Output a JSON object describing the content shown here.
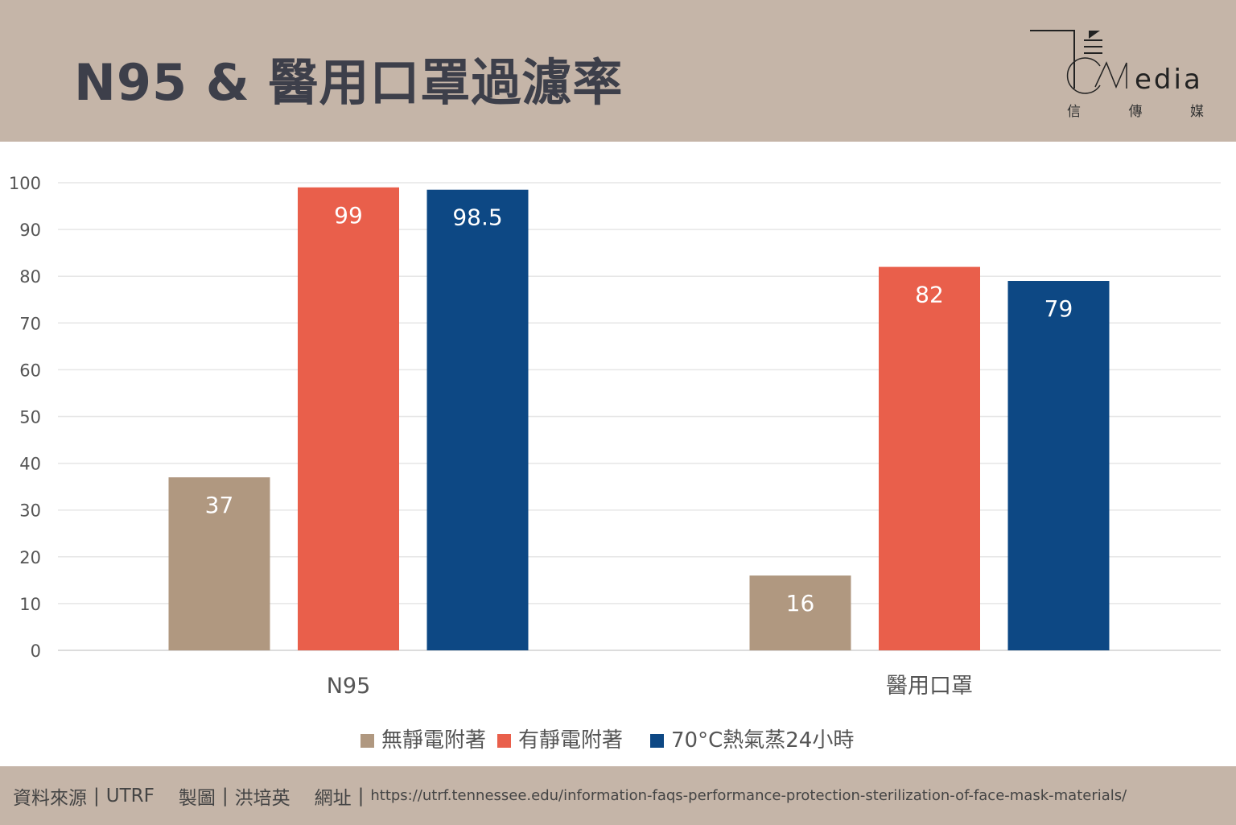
{
  "header": {
    "title": "N95 & 醫用口罩過濾率",
    "logo_text": "Media",
    "logo_sub": [
      "信",
      "傳",
      "媒"
    ]
  },
  "footer": {
    "source_label": "資料來源",
    "source": "UTRF",
    "author_label": "製圖",
    "author": "洪培英",
    "url_label": "網址",
    "url": "https://utrf.tennessee.edu/information-faqs-performance-protection-sterilization-of-face-mask-materials/",
    "divider": "|"
  },
  "chart_data": {
    "type": "bar",
    "categories": [
      "N95",
      "醫用口罩"
    ],
    "series": [
      {
        "name": "無靜電附著",
        "color": "#b09880",
        "values": [
          37,
          16
        ]
      },
      {
        "name": "有靜電附著",
        "color": "#e95f4b",
        "values": [
          99,
          82
        ]
      },
      {
        "name": "70°C熱氣蒸24小時",
        "color": "#0d4884",
        "values": [
          98.5,
          79
        ]
      }
    ],
    "ylim": [
      0,
      100
    ],
    "yticks": [
      0,
      10,
      20,
      30,
      40,
      50,
      60,
      70,
      80,
      90,
      100
    ],
    "grid": true,
    "legend": "bottom",
    "title": "",
    "xlabel": "",
    "ylabel": ""
  }
}
